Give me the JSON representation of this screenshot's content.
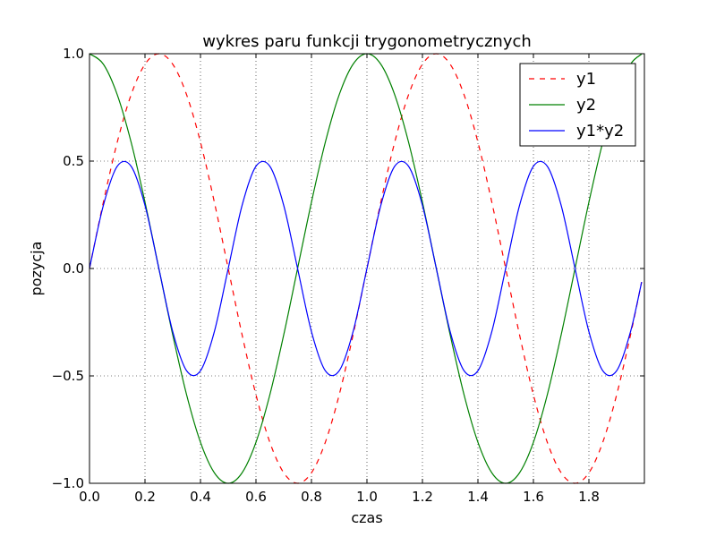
{
  "chart_data": {
    "type": "line",
    "title": "wykres paru funkcji trygonometrycznych",
    "xlabel": "czas",
    "ylabel": "pozycja",
    "xlim": [
      0,
      2.0
    ],
    "ylim": [
      -1.0,
      1.0
    ],
    "x_ticks": [
      0.0,
      0.2,
      0.4,
      0.6,
      0.8,
      1.0,
      1.2,
      1.4,
      1.6,
      1.8
    ],
    "x_tick_labels": [
      "0.0",
      "0.2",
      "0.4",
      "0.6",
      "0.8",
      "1.0",
      "1.2",
      "1.4",
      "1.6",
      "1.8"
    ],
    "y_ticks": [
      -1.0,
      -0.5,
      0.0,
      0.5,
      1.0
    ],
    "y_tick_labels": [
      "−1.0",
      "−0.5",
      "0.0",
      "0.5",
      "1.0"
    ],
    "grid": true,
    "legend_position": "top-right",
    "x": [
      0.0,
      0.05,
      0.1,
      0.15,
      0.2,
      0.25,
      0.3,
      0.35,
      0.4,
      0.45,
      0.5,
      0.55,
      0.6,
      0.65,
      0.7,
      0.75,
      0.8,
      0.85,
      0.9,
      0.95,
      1.0,
      1.05,
      1.1,
      1.15,
      1.2,
      1.25,
      1.3,
      1.35,
      1.4,
      1.45,
      1.5,
      1.55,
      1.6,
      1.65,
      1.7,
      1.75,
      1.8,
      1.85,
      1.9,
      1.95,
      1.99
    ],
    "series": [
      {
        "name": "y1",
        "color": "#ff0000",
        "style": "dashed",
        "values": [
          0.0,
          0.309,
          0.588,
          0.809,
          0.951,
          1.0,
          0.951,
          0.809,
          0.588,
          0.309,
          0.0,
          -0.309,
          -0.588,
          -0.809,
          -0.951,
          -1.0,
          -0.951,
          -0.809,
          -0.588,
          -0.309,
          0.0,
          0.309,
          0.588,
          0.809,
          0.951,
          1.0,
          0.951,
          0.809,
          0.588,
          0.309,
          0.0,
          -0.309,
          -0.588,
          -0.809,
          -0.951,
          -1.0,
          -0.951,
          -0.809,
          -0.588,
          -0.309,
          -0.063
        ]
      },
      {
        "name": "y2",
        "color": "#008000",
        "style": "solid",
        "values": [
          1.0,
          0.951,
          0.809,
          0.588,
          0.309,
          0.0,
          -0.309,
          -0.588,
          -0.809,
          -0.951,
          -1.0,
          -0.951,
          -0.809,
          -0.588,
          -0.309,
          0.0,
          0.309,
          0.588,
          0.809,
          0.951,
          1.0,
          0.951,
          0.809,
          0.588,
          0.309,
          0.0,
          -0.309,
          -0.588,
          -0.809,
          -0.951,
          -1.0,
          -0.951,
          -0.809,
          -0.588,
          -0.309,
          0.0,
          0.309,
          0.588,
          0.809,
          0.951,
          0.998
        ]
      },
      {
        "name": "y1*y2",
        "color": "#0000ff",
        "style": "solid",
        "values": [
          0.0,
          0.294,
          0.476,
          0.476,
          0.294,
          0.0,
          -0.294,
          -0.476,
          -0.476,
          -0.294,
          0.0,
          0.294,
          0.476,
          0.476,
          0.294,
          0.0,
          -0.294,
          -0.476,
          -0.476,
          -0.294,
          0.0,
          0.294,
          0.476,
          0.476,
          0.294,
          0.0,
          -0.294,
          -0.476,
          -0.476,
          -0.294,
          0.0,
          0.294,
          0.476,
          0.476,
          0.294,
          0.0,
          -0.294,
          -0.476,
          -0.476,
          -0.294,
          -0.063
        ]
      }
    ]
  }
}
